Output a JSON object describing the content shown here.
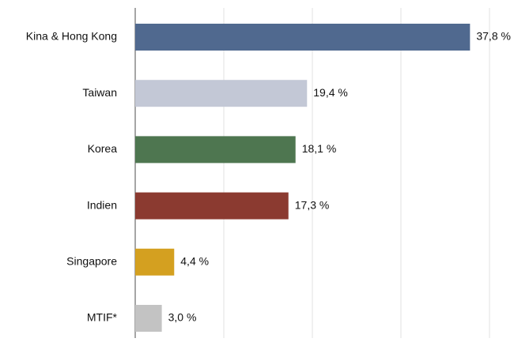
{
  "chart_data": {
    "type": "bar",
    "orientation": "horizontal",
    "categories": [
      "Kina & Hong Kong",
      "Taiwan",
      "Korea",
      "Indien",
      "Singapore",
      "MTIF*"
    ],
    "values": [
      37.8,
      19.4,
      18.1,
      17.3,
      4.4,
      3.0
    ],
    "value_labels": [
      "37,8 %",
      "19,4 %",
      "18,1 %",
      "17,3 %",
      "4,4 %",
      "3,0 %"
    ],
    "colors": [
      "#50698f",
      "#c3c8d6",
      "#4e7650",
      "#8b3a30",
      "#d4a020",
      "#c3c3c3"
    ],
    "xlim": [
      0,
      40
    ],
    "xticks": [
      0,
      10,
      20,
      30,
      40
    ],
    "grid": true
  }
}
